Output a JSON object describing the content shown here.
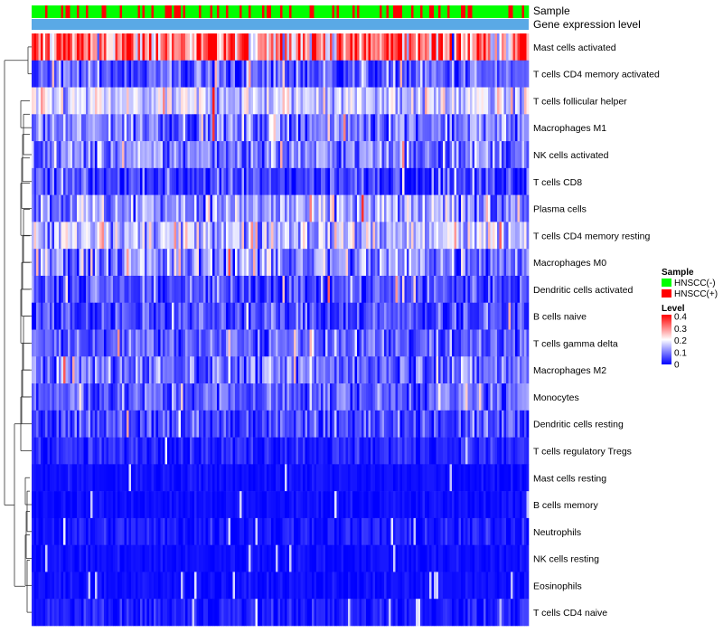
{
  "chart_data": {
    "type": "heatmap",
    "annotation_labels": [
      "Sample",
      "Gene expression level"
    ],
    "rows": [
      "Mast cells activated",
      "T cells CD4 memory activated",
      "T cells follicular helper",
      "Macrophages M1",
      "NK cells activated",
      "T cells CD8",
      "Plasma cells",
      "T cells CD4 memory resting",
      "Macrophages M0",
      "Dendritic cells activated",
      "B cells naive",
      "T cells gamma delta",
      "Macrophages M2",
      "Monocytes",
      "Dendritic cells resting",
      "T cells regulatory  Tregs",
      "Mast cells resting",
      "B cells memory",
      "Neutrophils",
      "NK cells resting",
      "Eosinophils",
      "T cells CD4 naive"
    ],
    "row_mean_levels": [
      0.3,
      0.07,
      0.16,
      0.1,
      0.1,
      0.05,
      0.12,
      0.15,
      0.11,
      0.06,
      0.06,
      0.07,
      0.09,
      0.07,
      0.06,
      0.03,
      0.01,
      0.01,
      0.02,
      0.01,
      0.01,
      0.02
    ],
    "row_spread": [
      0.1,
      0.05,
      0.05,
      0.05,
      0.05,
      0.04,
      0.06,
      0.06,
      0.07,
      0.04,
      0.04,
      0.04,
      0.05,
      0.04,
      0.04,
      0.02,
      0.01,
      0.01,
      0.02,
      0.01,
      0.01,
      0.02
    ],
    "num_samples": 220,
    "legend": {
      "sample_title": "Sample",
      "sample_entries": [
        {
          "label": "HNSCC(-)",
          "color": "#00ff00"
        },
        {
          "label": "HNSCC(+)",
          "color": "#ff0000"
        }
      ],
      "level_title": "Level",
      "level_ticks": [
        "0.4",
        "0.3",
        "0.2",
        "0.1",
        "0"
      ],
      "level_range": [
        0,
        0.4
      ],
      "level_colors": [
        "#0000ff",
        "#ffffff",
        "#ff0000"
      ]
    },
    "expression_bar_color": "#5aa9e6"
  }
}
